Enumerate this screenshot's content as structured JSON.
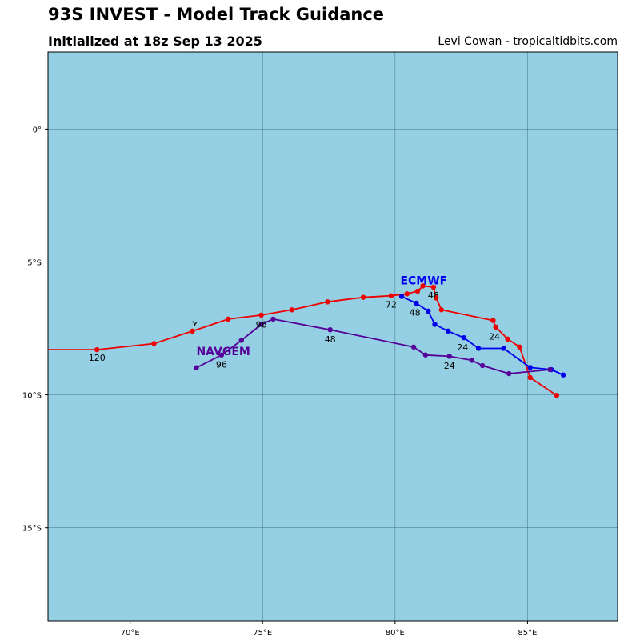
{
  "header": {
    "title": "93S INVEST - Model Track Guidance",
    "subtitle": "Initialized at 18z Sep 13 2025",
    "credit": "Levi Cowan - tropicaltidbits.com"
  },
  "chart_data": {
    "type": "line",
    "title": "93S INVEST - Model Track Guidance",
    "subtitle": "Initialized at 18z Sep 13 2025",
    "xlim": [
      66.9,
      88.4
    ],
    "ylim": [
      -18.5,
      2.9
    ],
    "grid": true,
    "xticks": [
      {
        "value": 70,
        "label": "70°E"
      },
      {
        "value": 75,
        "label": "75°E"
      },
      {
        "value": 80,
        "label": "80°E"
      },
      {
        "value": 85,
        "label": "85°E"
      }
    ],
    "yticks": [
      {
        "value": 0,
        "label": "0°"
      },
      {
        "value": -5,
        "label": "5°S"
      },
      {
        "value": -10,
        "label": "10°S"
      },
      {
        "value": -15,
        "label": "15°S"
      }
    ],
    "colors": {
      "ocean": "#95cfe4",
      "grid": "#3f6e80",
      "ecmwf": "#0000ee",
      "ens": "#ee0000",
      "navgem": "#550099"
    },
    "series": [
      {
        "name": "",
        "color": "#ee0000",
        "points": [
          [
            86.1,
            -10.02
          ],
          [
            85.1,
            -9.35
          ],
          [
            84.7,
            -8.2
          ],
          [
            84.25,
            -7.9
          ],
          [
            83.8,
            -7.45
          ],
          [
            83.7,
            -7.2
          ],
          [
            81.75,
            -6.8
          ],
          [
            81.55,
            -6.35
          ],
          [
            81.45,
            -5.95
          ],
          [
            81.05,
            -5.9
          ],
          [
            80.85,
            -6.1
          ],
          [
            80.45,
            -6.2
          ],
          [
            79.85,
            -6.27
          ],
          [
            78.8,
            -6.33
          ],
          [
            77.45,
            -6.5
          ],
          [
            76.1,
            -6.8
          ],
          [
            74.95,
            -7.0
          ],
          [
            73.7,
            -7.15
          ],
          [
            72.35,
            -7.6
          ],
          [
            70.9,
            -8.07
          ],
          [
            68.75,
            -8.3
          ],
          [
            66.9,
            -8.3
          ]
        ]
      },
      {
        "name": "ECMWF",
        "color": "#0000ee",
        "points": [
          [
            86.35,
            -9.25
          ],
          [
            85.9,
            -9.05
          ],
          [
            85.1,
            -8.97
          ],
          [
            84.1,
            -8.25
          ],
          [
            83.15,
            -8.25
          ],
          [
            82.6,
            -7.85
          ],
          [
            82.0,
            -7.6
          ],
          [
            81.5,
            -7.35
          ],
          [
            81.25,
            -6.85
          ],
          [
            80.8,
            -6.55
          ],
          [
            80.25,
            -6.3
          ]
        ]
      },
      {
        "name": "NAVGEM",
        "color": "#550099",
        "points": [
          [
            85.85,
            -9.05
          ],
          [
            84.3,
            -9.2
          ],
          [
            83.3,
            -8.9
          ],
          [
            82.9,
            -8.7
          ],
          [
            82.05,
            -8.55
          ],
          [
            81.15,
            -8.5
          ],
          [
            80.7,
            -8.2
          ],
          [
            77.55,
            -7.55
          ],
          [
            75.4,
            -7.15
          ],
          [
            74.95,
            -7.35
          ],
          [
            74.2,
            -7.95
          ],
          [
            73.45,
            -8.5
          ],
          [
            72.5,
            -8.98
          ]
        ]
      }
    ],
    "annotations": [
      {
        "text": "120",
        "x": 68.75,
        "y": -8.6,
        "color": "#000000"
      },
      {
        "text": "96",
        "x": 74.95,
        "y": -7.35,
        "color": "#000000"
      },
      {
        "text": "72",
        "x": 79.85,
        "y": -6.6,
        "color": "#000000"
      },
      {
        "text": "48",
        "x": 81.45,
        "y": -6.25,
        "color": "#000000"
      },
      {
        "text": "48",
        "x": 80.75,
        "y": -6.9,
        "color": "#000000"
      },
      {
        "text": "24",
        "x": 83.75,
        "y": -7.8,
        "color": "#000000"
      },
      {
        "text": "24",
        "x": 82.55,
        "y": -8.2,
        "color": "#000000"
      },
      {
        "text": "48",
        "x": 77.55,
        "y": -7.9,
        "color": "#000000"
      },
      {
        "text": "24",
        "x": 82.05,
        "y": -8.9,
        "color": "#000000"
      },
      {
        "text": "96",
        "x": 73.45,
        "y": -8.85,
        "color": "#000000"
      },
      {
        "text": "ECMWF",
        "x": 80.2,
        "y": -5.85,
        "color": "#0000ee"
      },
      {
        "text": "NAVGEM",
        "x": 72.5,
        "y": -8.5,
        "color": "#550099"
      }
    ]
  }
}
